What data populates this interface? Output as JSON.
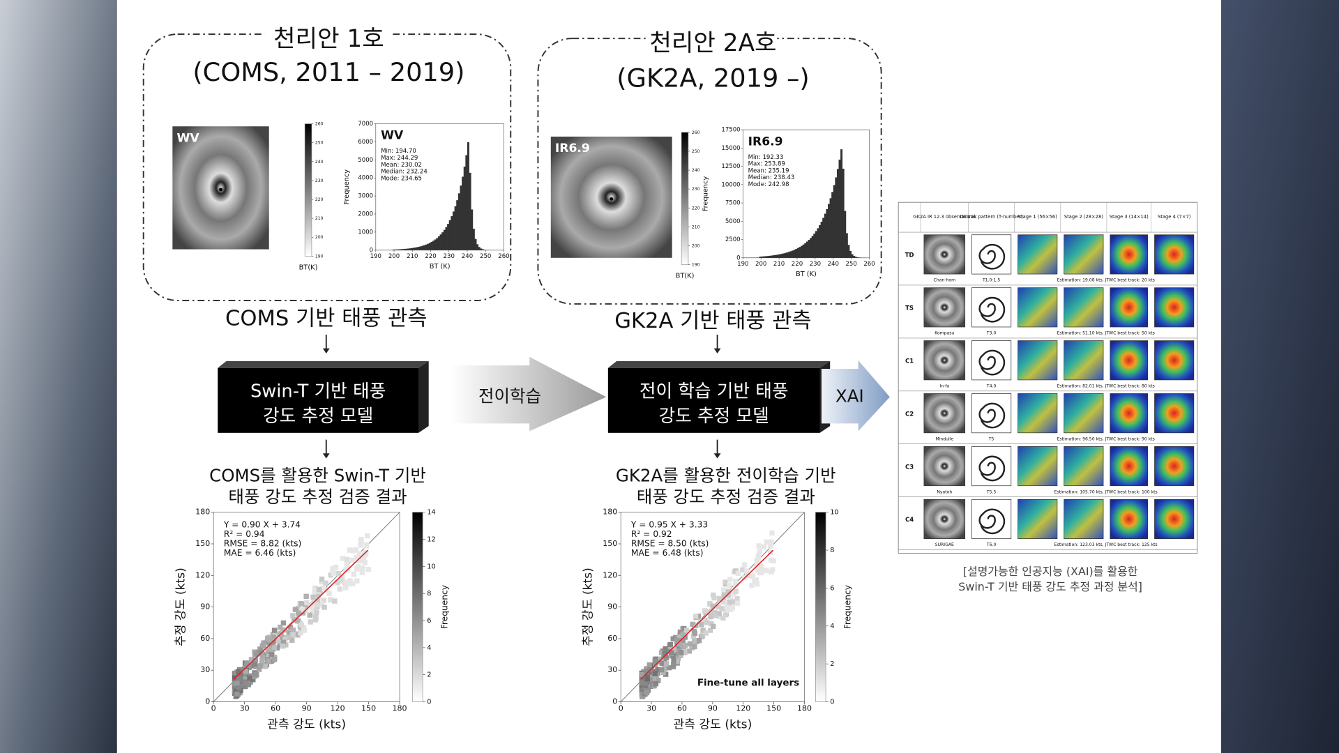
{
  "panels": [
    {
      "title": "천리안 1호",
      "subtitle": "(COMS, 2011 – 2019)",
      "image_label": "WV",
      "colorbar_ticks": [
        190,
        200,
        210,
        220,
        230,
        240,
        250,
        260
      ],
      "colorbar_label": "BT(K)",
      "hist": {
        "label": "WV",
        "stats": [
          "Min: 194.70",
          "Max: 244.29",
          "Mean: 230.02",
          "Median: 232.24",
          "Mode: 234.65"
        ],
        "xticks": [
          190,
          200,
          210,
          220,
          230,
          240,
          250,
          260
        ],
        "yticks": [
          0,
          1000,
          2000,
          3000,
          4000,
          5000,
          6000,
          7000
        ],
        "xlabel": "BT (K)",
        "ylabel": "Frequency"
      },
      "caption": "COMS 기반 태풍 관측",
      "model": [
        "Swin-T 기반 태풍",
        "강도 추정 모델"
      ],
      "result_title": [
        "COMS를 활용한 Swin-T 기반",
        "태풍 강도 추정 검증 결과"
      ],
      "scatter": {
        "stats": [
          "Y = 0.90 X + 3.74",
          "R² = 0.94",
          "RMSE = 8.82 (kts)",
          "MAE = 6.46 (kts)"
        ],
        "ticks": [
          0,
          30,
          60,
          90,
          120,
          150,
          180
        ],
        "colorbar_ticks": [
          0,
          2,
          4,
          6,
          8,
          10,
          12,
          14
        ],
        "colorbar_label": "Frequency",
        "xlabel": "관측 강도 (kts)",
        "ylabel": "추정 강도 (kts)"
      }
    },
    {
      "title": "천리안 2A호",
      "subtitle": "(GK2A, 2019 –)",
      "image_label": "IR6.9",
      "colorbar_ticks": [
        190,
        200,
        210,
        220,
        230,
        240,
        250,
        260
      ],
      "colorbar_label": "BT(K)",
      "hist": {
        "label": "IR6.9",
        "stats": [
          "Min: 192.33",
          "Max: 253.89",
          "Mean: 235.19",
          "Median: 238.43",
          "Mode: 242.98"
        ],
        "xticks": [
          190,
          200,
          210,
          220,
          230,
          240,
          250,
          260
        ],
        "yticks": [
          0,
          2500,
          5000,
          7500,
          10000,
          12500,
          15000,
          17500
        ],
        "xlabel": "BT (K)",
        "ylabel": "Frequency"
      },
      "caption": "GK2A 기반 태풍 관측",
      "model": [
        "전이 학습 기반 태풍",
        "강도 추정 모델"
      ],
      "result_title": [
        "GK2A를 활용한 전이학습 기반",
        "태풍 강도 추정 검증 결과"
      ],
      "scatter": {
        "stats": [
          "Y = 0.95 X + 3.33",
          "R² = 0.92",
          "RMSE = 8.50 (kts)",
          "MAE = 6.48 (kts)"
        ],
        "ticks": [
          0,
          30,
          60,
          90,
          120,
          150,
          180
        ],
        "colorbar_ticks": [
          0,
          2,
          4,
          6,
          8,
          10
        ],
        "colorbar_label": "Frequency",
        "xlabel": "관측 강도 (kts)",
        "ylabel": "추정 강도 (kts)",
        "annotation": "Fine-tune all layers"
      }
    }
  ],
  "transfer_label": "전이학습",
  "xai_label": "XAI",
  "xai_table": {
    "headers": [
      "GK2A IR 12.3 observations",
      "Dvorak pattern (T-number)",
      "Stage 1 (56×56)",
      "Stage 2 (28×28)",
      "Stage 3 (14×14)",
      "Stage 4 (7×7)"
    ],
    "rows": [
      {
        "label": "TD",
        "name": "Chan-hom",
        "t_number": "T1.0-1.5",
        "estimation": "Estimation: 19.08 kts, JTWC best track: 20 kts"
      },
      {
        "label": "TS",
        "name": "Kompasu",
        "t_number": "T3.0",
        "estimation": "Estimation: 51.10 kts, JTWC best track: 50 kts"
      },
      {
        "label": "C1",
        "name": "In-fa",
        "t_number": "T4.0",
        "estimation": "Estimation: 82.01 kts, JTWC best track: 80 kts"
      },
      {
        "label": "C2",
        "name": "Mindulle",
        "t_number": "T5",
        "estimation": "Estimation: 96.50 kts, JTWC best track: 90 kts"
      },
      {
        "label": "C3",
        "name": "Nyatoh",
        "t_number": "T5.5",
        "estimation": "Estimation: 105.70 kts, JTWC best track: 100 kts"
      },
      {
        "label": "C4",
        "name": "SURIGAE",
        "t_number": "T6.0",
        "estimation": "Estimation: 123.03 kts, JTWC best track: 125 kts"
      }
    ]
  },
  "xai_caption": [
    "[설명가능한 인공지능 (XAI)를 활용한",
    "Swin-T 기반 태풍 강도 추정 과정 분석]"
  ]
}
